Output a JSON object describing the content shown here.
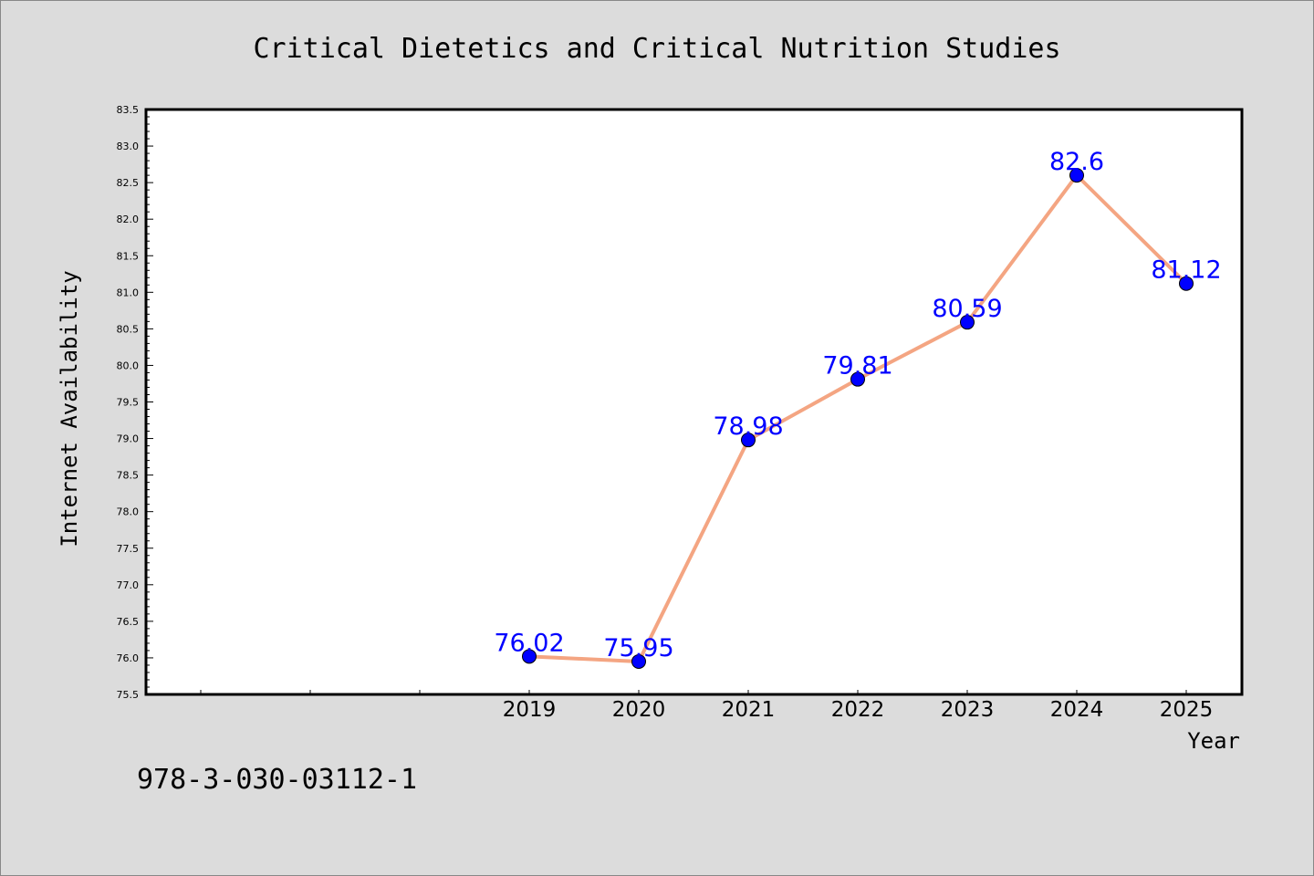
{
  "chart_data": {
    "type": "line",
    "title": "Critical Dietetics and Critical Nutrition Studies",
    "xlabel": "Year",
    "ylabel": "Internet Availability",
    "x": [
      "2019",
      "2020",
      "2021",
      "2022",
      "2023",
      "2024",
      "2025"
    ],
    "series": [
      {
        "values": [
          76.02,
          75.95,
          78.98,
          79.81,
          80.59,
          82.6,
          81.12
        ],
        "labels": [
          "76.02",
          "75.95",
          "78.98",
          "79.81",
          "80.59",
          "82.6",
          "81.12"
        ]
      }
    ],
    "ylim": [
      75.5,
      83.5
    ],
    "ytick_step": 0.5,
    "grid": false,
    "colors": {
      "line": "#f4a582",
      "marker": "#0000ff",
      "data_label": "#0000ff",
      "background": "#dcdcdc",
      "plot_bg": "#ffffff"
    }
  },
  "footnote": "978-3-030-03112-1"
}
